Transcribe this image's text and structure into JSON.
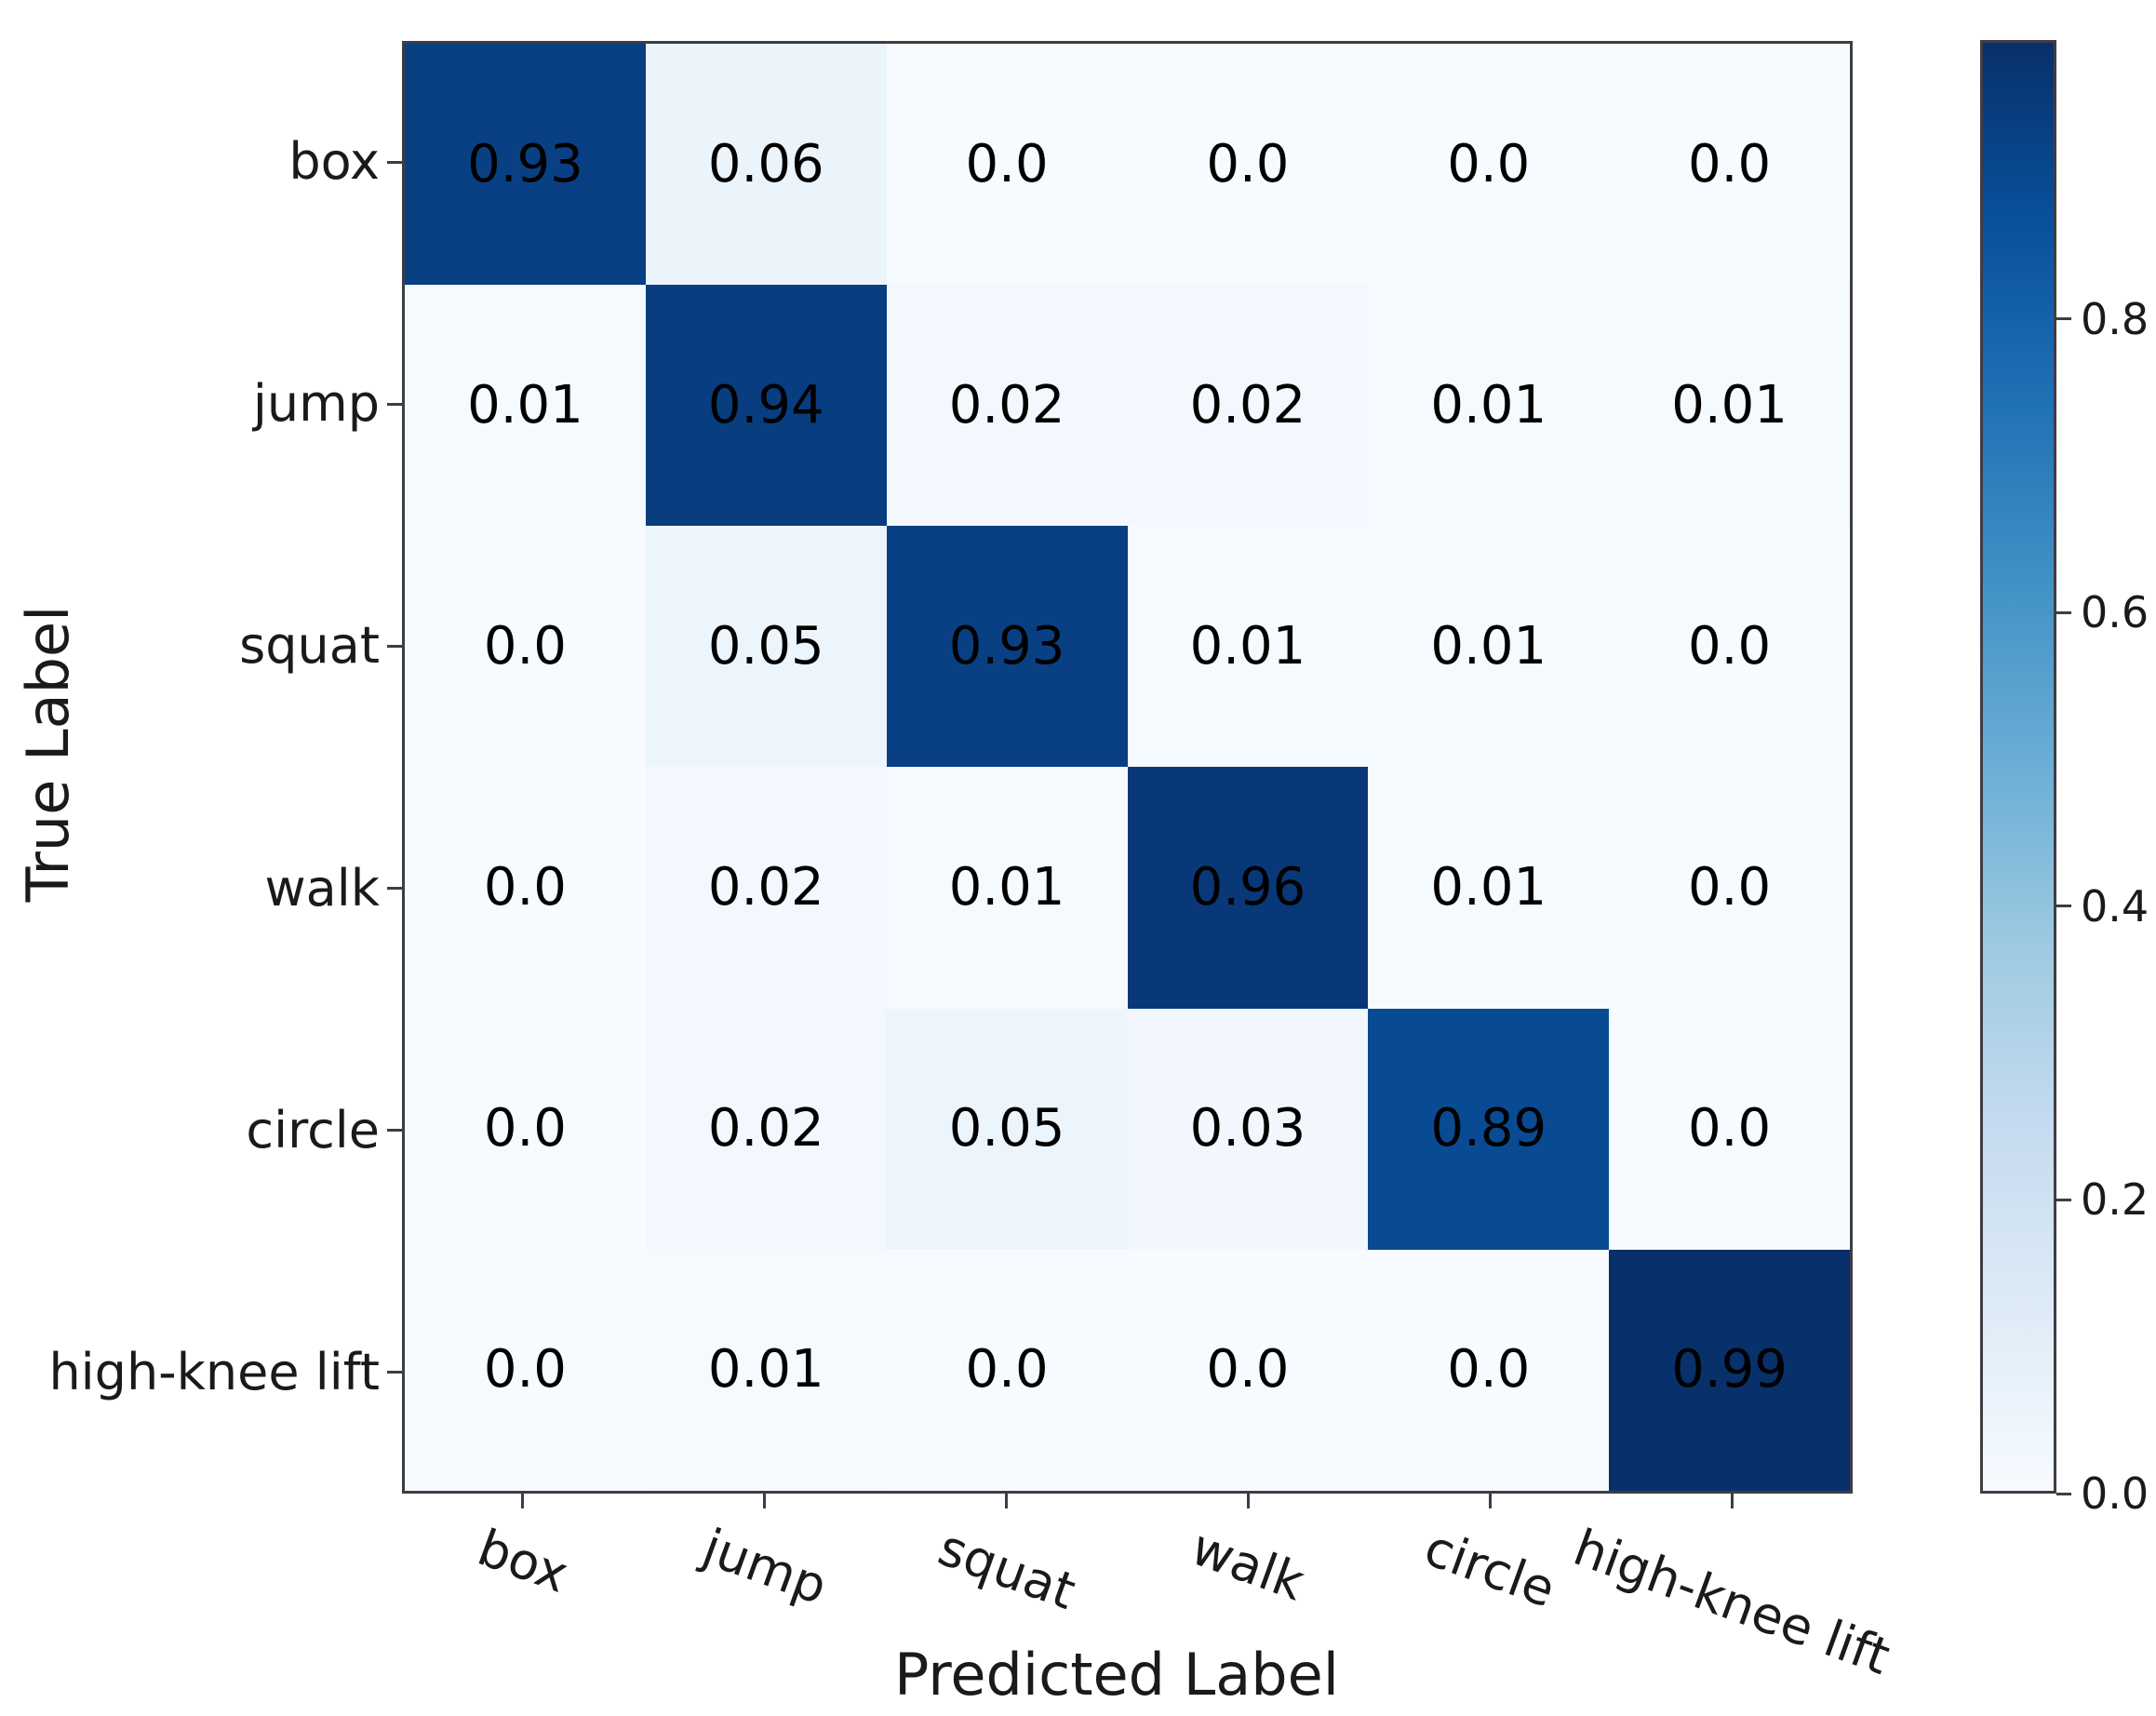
{
  "chart_data": {
    "type": "heatmap",
    "title": "",
    "xlabel": "Predicted Label",
    "ylabel": "True Label",
    "categories": [
      "box",
      "jump",
      "squat",
      "walk",
      "circle",
      "high-knee lift"
    ],
    "matrix": [
      [
        0.93,
        0.06,
        0.0,
        0.0,
        0.0,
        0.0
      ],
      [
        0.01,
        0.94,
        0.02,
        0.02,
        0.01,
        0.01
      ],
      [
        0.0,
        0.05,
        0.93,
        0.01,
        0.01,
        0.0
      ],
      [
        0.0,
        0.02,
        0.01,
        0.96,
        0.01,
        0.0
      ],
      [
        0.0,
        0.02,
        0.05,
        0.03,
        0.89,
        0.0
      ],
      [
        0.0,
        0.01,
        0.0,
        0.0,
        0.0,
        0.99
      ]
    ],
    "cell_labels": [
      [
        "0.93",
        "0.06",
        "0.0",
        "0.0",
        "0.0",
        "0.0"
      ],
      [
        "0.01",
        "0.94",
        "0.02",
        "0.02",
        "0.01",
        "0.01"
      ],
      [
        "0.0",
        "0.05",
        "0.93",
        "0.01",
        "0.01",
        "0.0"
      ],
      [
        "0.0",
        "0.02",
        "0.01",
        "0.96",
        "0.01",
        "0.0"
      ],
      [
        "0.0",
        "0.02",
        "0.05",
        "0.03",
        "0.89",
        "0.0"
      ],
      [
        "0.0",
        "0.01",
        "0.0",
        "0.0",
        "0.0",
        "0.99"
      ]
    ],
    "colormap": "Blues",
    "colormap_anchors": [
      "#f7fbff",
      "#deebf7",
      "#c6dbef",
      "#9ecae1",
      "#6baed6",
      "#4292c6",
      "#2171b5",
      "#08519c",
      "#08306b"
    ],
    "vmin": 0.0,
    "vmax": 0.99,
    "annotation_color": "#000000",
    "grid": false,
    "legend_position": "none",
    "colorbar": {
      "position": "right",
      "ticks": [
        {
          "value": 0.8,
          "label": "0.8"
        },
        {
          "value": 0.6,
          "label": "0.6"
        },
        {
          "value": 0.4,
          "label": "0.4"
        },
        {
          "value": 0.2,
          "label": "0.2"
        },
        {
          "value": 0.0,
          "label": "0.0"
        }
      ]
    }
  }
}
